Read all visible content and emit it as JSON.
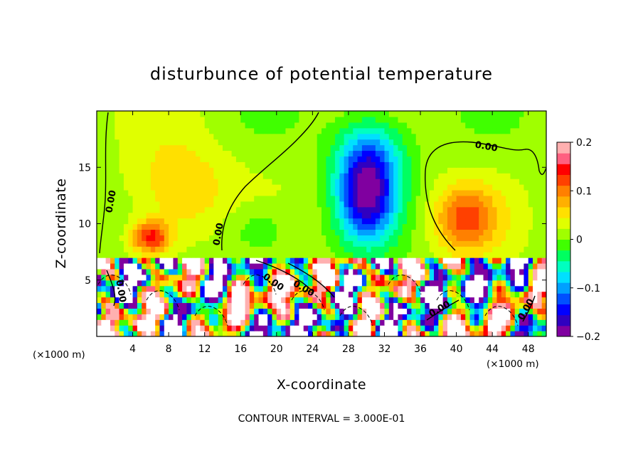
{
  "chart_data": {
    "type": "heatmap",
    "title": "disturbunce of potential temperature",
    "xlabel": "X-coordinate",
    "ylabel": "Z-coordinate",
    "x_unit_label": "(×1000 m)",
    "xlim": [
      0,
      50
    ],
    "ylim": [
      0,
      20
    ],
    "x_ticks": [
      4,
      8,
      12,
      16,
      20,
      24,
      28,
      32,
      36,
      40,
      44,
      48
    ],
    "y_ticks": [
      5,
      10,
      15
    ],
    "colorbar": {
      "range": [
        -0.2,
        0.2
      ],
      "tick_values": [
        0.2,
        0.1,
        0,
        -0.1,
        -0.2
      ],
      "tick_labels": [
        "0.2",
        "0.1",
        "0",
        "−0.1",
        "−0.2"
      ],
      "colors": [
        "#8000a0",
        "#3000c0",
        "#0000ff",
        "#0050ff",
        "#00a0ff",
        "#00e0ff",
        "#00ffc0",
        "#00ff60",
        "#40ff00",
        "#a0ff00",
        "#e0ff00",
        "#ffe000",
        "#ffb000",
        "#ff8000",
        "#ff4000",
        "#ff0000",
        "#ff6080",
        "#ffb0b0"
      ]
    },
    "contour_label": "0.00",
    "contour_interval_text": "CONTOUR INTERVAL = 3.000E-01",
    "boundary_layer_top": 7.2,
    "features": [
      {
        "x": 9,
        "z": 13.0,
        "value": 0.06,
        "sx": 5.5,
        "sz": 4.5
      },
      {
        "x": 6,
        "z": 8.8,
        "value": 0.13,
        "sx": 2.2,
        "sz": 1.5
      },
      {
        "x": 30,
        "z": 12.5,
        "value": -0.18,
        "sx": 3.2,
        "sz": 4.0
      },
      {
        "x": 30.5,
        "z": 16.5,
        "value": -0.08,
        "sx": 4.0,
        "sz": 3.5
      },
      {
        "x": 41,
        "z": 10.5,
        "value": 0.1,
        "sx": 3.5,
        "sz": 3.0
      },
      {
        "x": 18,
        "z": 9.5,
        "value": -0.04,
        "sx": 4.0,
        "sz": 2.5
      }
    ]
  }
}
